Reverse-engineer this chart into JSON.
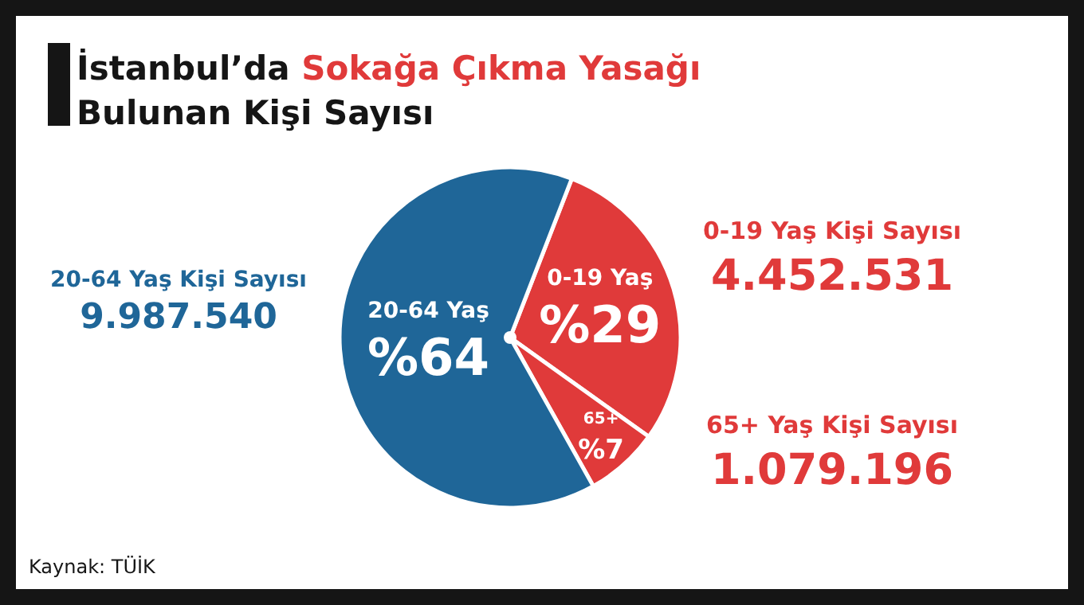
{
  "chart_data": {
    "type": "pie",
    "title": "İstanbul’da Sokağa Çıkma Yasağı Bulunan Kişi Sayısı",
    "categories": [
      "0-19 Yaş",
      "65+",
      "20-64 Yaş"
    ],
    "values": [
      29,
      7,
      64
    ],
    "value_labels": [
      "%29",
      "%7",
      "%64"
    ],
    "colors": [
      "#e03a3a",
      "#e03a3a",
      "#1f6698"
    ],
    "annotations": [
      "20-64 Yaş Kişi Sayısı",
      "9.987.540",
      "0-19 Yaş Kişi Sayısı",
      "4.452.531",
      "65+ Yaş Kişi Sayısı",
      "1.079.196",
      "Kaynak: TÜİK"
    ]
  }
}
